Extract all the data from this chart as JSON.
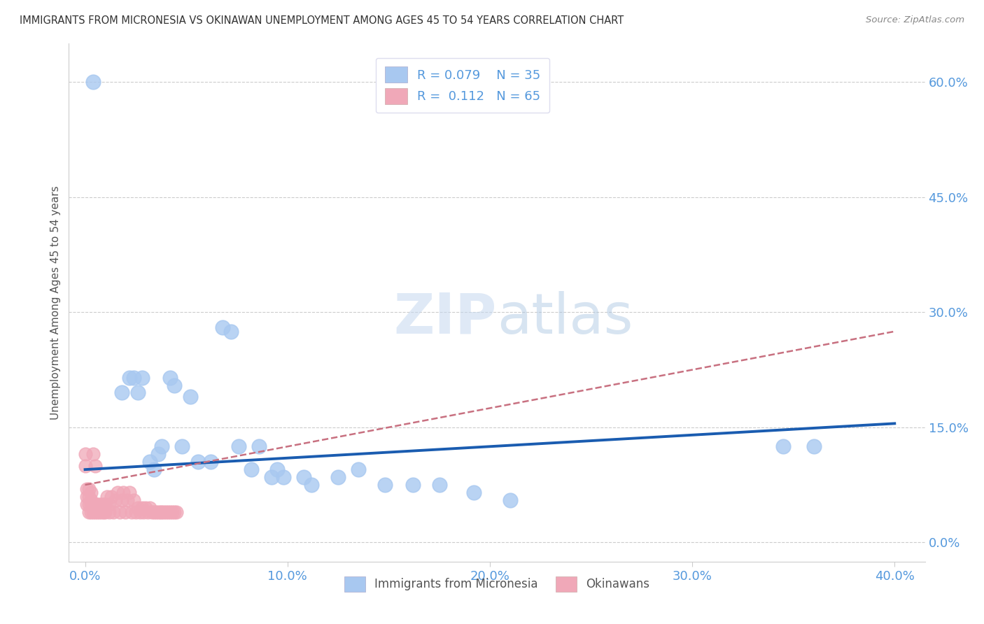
{
  "title": "IMMIGRANTS FROM MICRONESIA VS OKINAWAN UNEMPLOYMENT AMONG AGES 45 TO 54 YEARS CORRELATION CHART",
  "source": "Source: ZipAtlas.com",
  "xlabel_ticks": [
    "0.0%",
    "10.0%",
    "20.0%",
    "30.0%",
    "40.0%"
  ],
  "xlabel_tick_vals": [
    0.0,
    0.1,
    0.2,
    0.3,
    0.4
  ],
  "ylabel_ticks": [
    "0.0%",
    "15.0%",
    "30.0%",
    "45.0%",
    "60.0%"
  ],
  "ylabel_tick_vals": [
    0.0,
    0.15,
    0.3,
    0.45,
    0.6
  ],
  "ylabel": "Unemployment Among Ages 45 to 54 years",
  "xmin": -0.008,
  "xmax": 0.415,
  "ymin": -0.025,
  "ymax": 0.65,
  "watermark_zip": "ZIP",
  "watermark_atlas": "atlas",
  "blue_R": "0.079",
  "blue_N": "35",
  "pink_R": "0.112",
  "pink_N": "65",
  "legend_label1": "Immigrants from Micronesia",
  "legend_label2": "Okinawans",
  "blue_scatter_x": [
    0.004,
    0.018,
    0.022,
    0.024,
    0.026,
    0.028,
    0.032,
    0.034,
    0.036,
    0.038,
    0.042,
    0.044,
    0.048,
    0.052,
    0.056,
    0.062,
    0.068,
    0.072,
    0.076,
    0.082,
    0.086,
    0.092,
    0.095,
    0.098,
    0.108,
    0.112,
    0.125,
    0.135,
    0.148,
    0.162,
    0.175,
    0.192,
    0.21,
    0.345,
    0.36
  ],
  "blue_scatter_y": [
    0.6,
    0.195,
    0.215,
    0.215,
    0.195,
    0.215,
    0.105,
    0.095,
    0.115,
    0.125,
    0.215,
    0.205,
    0.125,
    0.19,
    0.105,
    0.105,
    0.28,
    0.275,
    0.125,
    0.095,
    0.125,
    0.085,
    0.095,
    0.085,
    0.085,
    0.075,
    0.085,
    0.095,
    0.075,
    0.075,
    0.075,
    0.065,
    0.055,
    0.125,
    0.125
  ],
  "pink_scatter_x": [
    0.0,
    0.0,
    0.001,
    0.001,
    0.001,
    0.002,
    0.002,
    0.002,
    0.002,
    0.003,
    0.003,
    0.003,
    0.003,
    0.004,
    0.004,
    0.004,
    0.005,
    0.005,
    0.005,
    0.006,
    0.006,
    0.007,
    0.007,
    0.008,
    0.008,
    0.009,
    0.009,
    0.01,
    0.01,
    0.011,
    0.012,
    0.012,
    0.013,
    0.014,
    0.015,
    0.016,
    0.017,
    0.018,
    0.019,
    0.02,
    0.021,
    0.022,
    0.023,
    0.024,
    0.025,
    0.026,
    0.027,
    0.028,
    0.029,
    0.03,
    0.031,
    0.032,
    0.033,
    0.034,
    0.035,
    0.036,
    0.037,
    0.038,
    0.039,
    0.04,
    0.041,
    0.042,
    0.043,
    0.044,
    0.045
  ],
  "pink_scatter_y": [
    0.1,
    0.115,
    0.05,
    0.06,
    0.07,
    0.04,
    0.05,
    0.06,
    0.07,
    0.04,
    0.05,
    0.055,
    0.065,
    0.04,
    0.05,
    0.115,
    0.04,
    0.05,
    0.1,
    0.04,
    0.05,
    0.04,
    0.05,
    0.04,
    0.05,
    0.04,
    0.05,
    0.04,
    0.05,
    0.06,
    0.04,
    0.05,
    0.06,
    0.04,
    0.055,
    0.065,
    0.04,
    0.055,
    0.065,
    0.04,
    0.055,
    0.065,
    0.04,
    0.055,
    0.04,
    0.045,
    0.04,
    0.045,
    0.04,
    0.045,
    0.04,
    0.045,
    0.04,
    0.04,
    0.04,
    0.04,
    0.04,
    0.04,
    0.04,
    0.04,
    0.04,
    0.04,
    0.04,
    0.04,
    0.04
  ],
  "blue_line_x": [
    0.0,
    0.4
  ],
  "blue_line_y": [
    0.095,
    0.155
  ],
  "pink_line_x": [
    0.0,
    0.4
  ],
  "pink_line_y": [
    0.075,
    0.275
  ],
  "blue_dot_color": "#a8c8f0",
  "pink_dot_color": "#f0a8b8",
  "blue_line_color": "#1a5cb0",
  "pink_line_color": "#c87080",
  "grid_color": "#cccccc",
  "tick_color": "#5599dd",
  "background_color": "#ffffff",
  "spine_color": "#cccccc"
}
